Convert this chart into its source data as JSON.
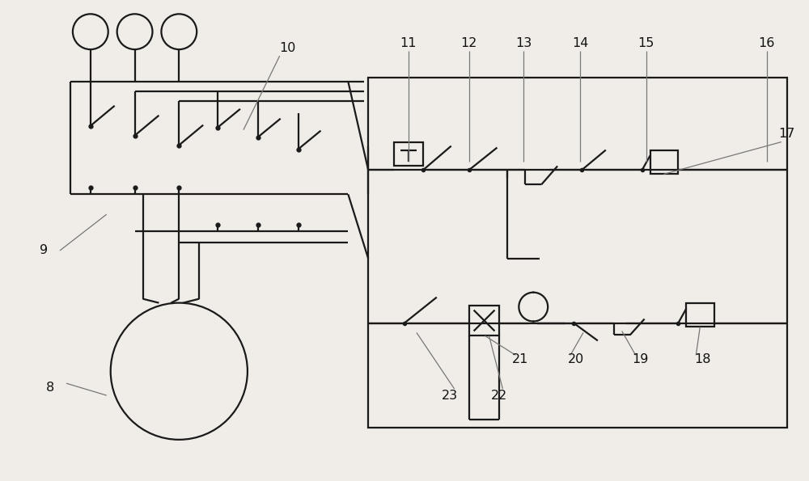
{
  "bg_color": "#f0ede8",
  "line_color": "#1a1a1a",
  "lw": 1.6,
  "fig_width": 10.0,
  "fig_height": 5.95,
  "dpi": 100
}
